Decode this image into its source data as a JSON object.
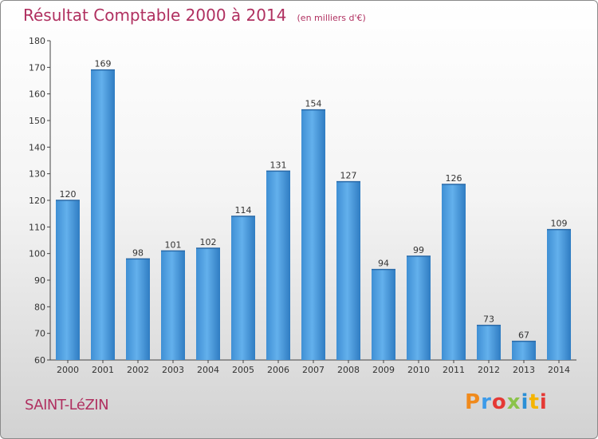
{
  "chart_data": {
    "type": "bar",
    "title": "Résultat Comptable 2000 à 2014",
    "subtitle": "(en milliers d'€)",
    "categories": [
      "2000",
      "2001",
      "2002",
      "2003",
      "2004",
      "2005",
      "2006",
      "2007",
      "2008",
      "2009",
      "2010",
      "2011",
      "2012",
      "2013",
      "2014"
    ],
    "values": [
      120,
      169,
      98,
      101,
      102,
      114,
      131,
      154,
      127,
      94,
      99,
      126,
      73,
      67,
      109
    ],
    "xlabel": "",
    "ylabel": "",
    "ylim": [
      60,
      180
    ],
    "yticks": [
      60,
      70,
      80,
      90,
      100,
      110,
      120,
      130,
      140,
      150,
      160,
      170,
      180
    ],
    "grid": false,
    "bar_color": "#4d9ee0"
  },
  "footer": {
    "city": "SAINT-LéZIN",
    "logo": "Proxiti",
    "logo_colors": [
      "#f08a1c",
      "#3d9be9",
      "#e53935",
      "#8bc34a",
      "#2b8fd6",
      "#f5b400",
      "#e53935"
    ]
  }
}
